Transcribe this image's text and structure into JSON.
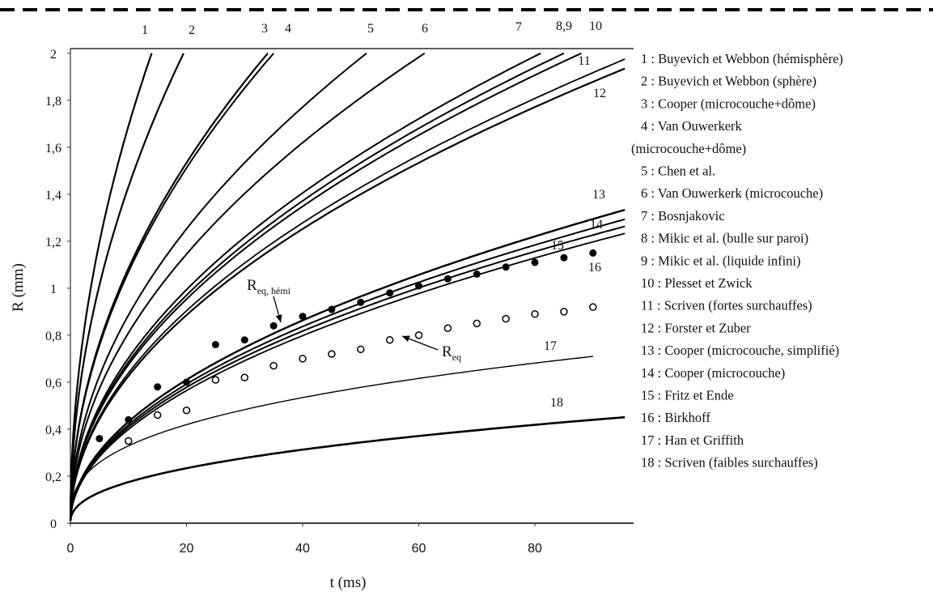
{
  "chart_data": {
    "type": "line",
    "xlabel": "t (ms)",
    "ylabel": "R (mm)",
    "xlim": [
      0,
      97
    ],
    "ylim": [
      0,
      2.02
    ],
    "x_ticks": [
      "0",
      "20",
      "40",
      "60",
      "80"
    ],
    "x_tick_values": [
      0,
      20,
      40,
      60,
      80
    ],
    "y_ticks": [
      "0",
      "0,2",
      "0,4",
      "0,6",
      "0,8",
      "1",
      "1,2",
      "1,4",
      "1,6",
      "1,8",
      "2"
    ],
    "y_tick_values": [
      0,
      0.2,
      0.4,
      0.6,
      0.8,
      1.0,
      1.2,
      1.4,
      1.6,
      1.8,
      2.0
    ],
    "curve_numbers": [
      "1",
      "2",
      "3",
      "4",
      "5",
      "6",
      "7",
      "8,9",
      "10",
      "11",
      "12",
      "13",
      "14",
      "15",
      "16",
      "17",
      "18"
    ],
    "series": [
      {
        "label": "1",
        "t_at_R2": 14
      },
      {
        "label": "2",
        "t_at_R2": 19.5
      },
      {
        "label": "3",
        "t_at_R2": 34
      },
      {
        "label": "4",
        "t_at_R2": 35
      },
      {
        "label": "5",
        "t_at_R2": 51
      },
      {
        "label": "6",
        "t_at_R2": 61
      },
      {
        "label": "7",
        "t_at_R2": 81
      },
      {
        "label": "8,9",
        "t_at_R2": 85
      },
      {
        "label": "10",
        "t_at_R2": 88
      },
      {
        "label": "11",
        "R_at_t95": 1.97
      },
      {
        "label": "12",
        "R_at_t95": 1.93
      },
      {
        "label": "13",
        "R_at_t95": 1.33
      },
      {
        "label": "14",
        "R_at_t95": 1.29
      },
      {
        "label": "15",
        "R_at_t95": 1.26
      },
      {
        "label": "16",
        "R_at_t95": 1.23
      },
      {
        "label": "17",
        "R_at_t90": 0.71
      },
      {
        "label": "18",
        "R_at_t95": 0.45
      }
    ],
    "points_filled": {
      "name": "R_eq, hémi",
      "x": [
        5,
        10,
        15,
        20,
        25,
        30,
        35,
        40,
        45,
        50,
        55,
        60,
        65,
        70,
        75,
        80,
        85,
        90
      ],
      "y": [
        0.36,
        0.44,
        0.58,
        0.6,
        0.76,
        0.78,
        0.84,
        0.88,
        0.91,
        0.94,
        0.98,
        1.01,
        1.04,
        1.06,
        1.09,
        1.11,
        1.13,
        1.15
      ]
    },
    "points_open": {
      "name": "R_eq",
      "x": [
        10,
        15,
        20,
        25,
        30,
        35,
        40,
        45,
        50,
        55,
        60,
        65,
        70,
        75,
        80,
        85,
        90
      ],
      "y": [
        0.35,
        0.46,
        0.48,
        0.61,
        0.62,
        0.67,
        0.7,
        0.72,
        0.74,
        0.78,
        0.8,
        0.83,
        0.85,
        0.87,
        0.89,
        0.9,
        0.92
      ]
    },
    "annotations": [
      {
        "main": "R",
        "sub": "eq, hémi",
        "x": 35,
        "y": 0.84
      },
      {
        "main": "R",
        "sub": "eq",
        "x": 55,
        "y": 0.78
      }
    ],
    "legend": [
      "1 : Buyevich et Webbon (hémisphère)",
      "2 : Buyevich et Webbon (sphère)",
      "3 : Cooper (microcouche+dôme)",
      "4 : Van Ouwerkerk",
      "(microcouche+dôme)",
      "5 : Chen et al.",
      "6 : Van Ouwerkerk (microcouche)",
      "7 : Bosnjakovic",
      "8 : Mikic et al. (bulle sur paroi)",
      "9 : Mikic et al. (liquide infini)",
      "10 : Plesset et Zwick",
      "11 : Scriven (fortes surchauffes)",
      "12 : Forster et Zuber",
      "13 : Cooper (microcouche, simplifié)",
      "14 : Cooper (microcouche)",
      "15 : Fritz et Ende",
      "16 : Birkhoff",
      "17 : Han et Griffith",
      "18 : Scriven (faibles surchauffes)"
    ],
    "legend_placement": "right",
    "grid": false
  }
}
